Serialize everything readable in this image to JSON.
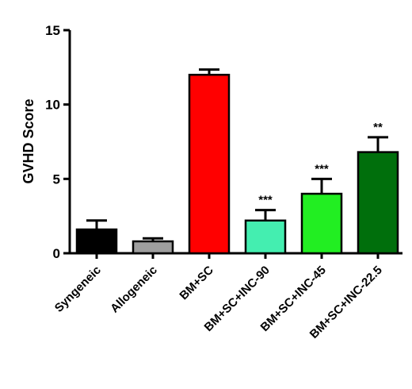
{
  "chart_data": {
    "type": "bar",
    "title": "",
    "xlabel": "",
    "ylabel": "GVHD Score",
    "ylim": [
      0,
      15
    ],
    "yticks": [
      0,
      5,
      10,
      15
    ],
    "categories": [
      "Syngeneic",
      "Allogeneic",
      "BM+SC",
      "BM+SC+INC-90",
      "BM+SC+INC-45",
      "BM+SC+INC-22.5"
    ],
    "values": [
      1.6,
      0.8,
      12.0,
      2.2,
      4.0,
      6.8
    ],
    "error_bars": [
      0.6,
      0.2,
      0.35,
      0.7,
      1.0,
      1.0
    ],
    "significance": [
      "",
      "",
      "",
      "***",
      "***",
      "**"
    ],
    "bar_colors": [
      "#000000",
      "#9e9e9e",
      "#ff0000",
      "#44eeb0",
      "#22ee22",
      "#006f0c"
    ],
    "grid": false,
    "legend": "none"
  }
}
